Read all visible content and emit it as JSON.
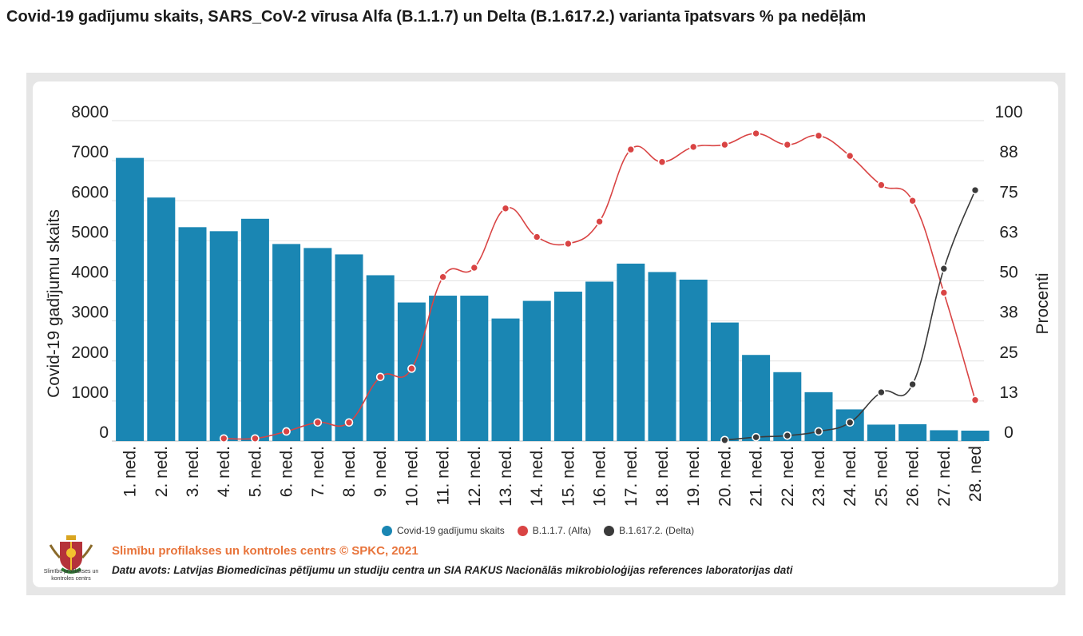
{
  "title": "Covid-19 gadījumu skaits, SARS_CoV-2 vīrusa Alfa (B.1.1.7) un Delta (B.1.617.2.) varianta īpatsvars % pa nedēļām",
  "footer": {
    "organization": "Slimību profilakses un kontroles centrs © SPKC, 2021",
    "data_source": "Datu avots: Latvijas Biomedicīnas pētījumu un studiju centra un SIA RAKUS Nacionālās mikrobioloģijas references laboratorijas dati",
    "logo_caption": "Slimību profilakses un kontroles centrs"
  },
  "colors": {
    "bars": "#1a86b3",
    "alfa": "#d94444",
    "delta": "#3a3a3a",
    "frame": "#e6e6e6"
  },
  "chart_data": {
    "type": "bar",
    "categories": [
      "1. ned.",
      "2. ned.",
      "3. ned.",
      "4. ned.",
      "5. ned.",
      "6. ned.",
      "7. ned.",
      "8. ned.",
      "9. ned.",
      "10. ned.",
      "11. ned.",
      "12. ned.",
      "13. ned.",
      "14. ned.",
      "15. ned.",
      "16. ned.",
      "17. ned.",
      "18. ned.",
      "19. ned.",
      "20. ned.",
      "21. ned.",
      "22. ned.",
      "23. ned.",
      "24. ned.",
      "25. ned.",
      "26. ned.",
      "27. ned.",
      "28. ned"
    ],
    "ylabel": "Covid-19 gadījumu skaits",
    "y2label": "Procenti",
    "ylim": [
      0,
      8000
    ],
    "y2lim": [
      0,
      100
    ],
    "yticks": [
      "8000",
      "7000",
      "6000",
      "5000",
      "4000",
      "3000",
      "2000",
      "1000",
      "0"
    ],
    "y2ticks": [
      "100",
      "88",
      "75",
      "63",
      "50",
      "38",
      "25",
      "13",
      "0"
    ],
    "grid": true,
    "legend_position": "bottom",
    "series": [
      {
        "name": "Covid-19 gadījumu skaits",
        "type": "bar",
        "axis": "left",
        "values": [
          7070,
          6080,
          5340,
          5240,
          5550,
          4920,
          4820,
          4660,
          4140,
          3460,
          3630,
          3630,
          3060,
          3500,
          3730,
          3980,
          4430,
          4220,
          4030,
          2960,
          2150,
          1720,
          1220,
          790,
          410,
          420,
          270,
          260
        ]
      },
      {
        "name": "B.1.1.7. (Alfa)",
        "type": "line",
        "axis": "right",
        "values": [
          null,
          null,
          null,
          0.8,
          0.8,
          3.0,
          5.8,
          5.8,
          20.0,
          22.6,
          51.2,
          54.1,
          72.6,
          63.7,
          61.6,
          68.5,
          91.0,
          87.1,
          91.8,
          92.5,
          96.0,
          92.5,
          95.3,
          89.0,
          79.9,
          75.0,
          46.3,
          12.8
        ]
      },
      {
        "name": "B.1.617.2. (Delta)",
        "type": "line",
        "axis": "right",
        "values": [
          null,
          null,
          null,
          null,
          null,
          null,
          null,
          null,
          null,
          null,
          null,
          null,
          null,
          null,
          null,
          null,
          null,
          null,
          null,
          0.3,
          1.2,
          1.7,
          3.0,
          5.8,
          15.2,
          17.7,
          53.8,
          78.3
        ]
      }
    ]
  }
}
